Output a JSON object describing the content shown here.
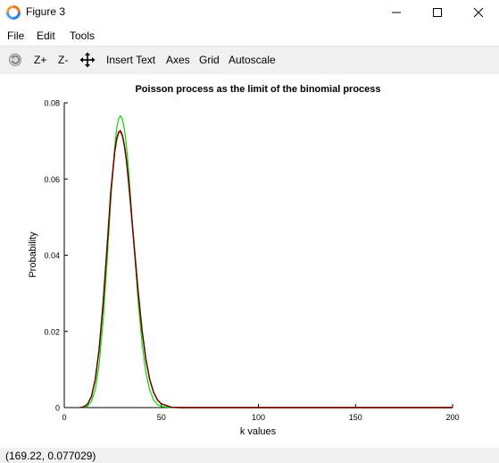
{
  "window": {
    "title": "Figure 3"
  },
  "menu": {
    "items": [
      "File",
      "Edit",
      "Tools"
    ]
  },
  "toolbar": {
    "zoom_in": "Z+",
    "zoom_out": "Z-",
    "insert_text": "Insert Text",
    "axes": "Axes",
    "grid": "Grid",
    "autoscale": "Autoscale"
  },
  "status": {
    "coordinates": "(169.22, 0.077029)"
  },
  "colors": {
    "binomial_series": "#00dd00",
    "poisson_series": "#cc2200",
    "third_series": "#660000"
  },
  "chart_data": {
    "type": "line",
    "title": "Poisson process as the limit of the binomial process",
    "xlabel": "k values",
    "ylabel": "Probability",
    "xlim": [
      0,
      200
    ],
    "ylim": [
      0,
      0.08
    ],
    "xticks": [
      0,
      50,
      100,
      150,
      200
    ],
    "yticks": [
      0,
      0.02,
      0.04,
      0.06,
      0.08
    ],
    "ytick_labels": [
      "0",
      "0.02",
      "0.04",
      "0.06",
      "0.08"
    ],
    "grid": false,
    "series": [
      {
        "color": "#00dd00",
        "x": [
          10,
          12,
          14,
          16,
          18,
          20,
          22,
          24,
          26,
          27,
          28,
          29,
          30,
          31,
          32,
          33,
          34,
          36,
          38,
          40,
          42,
          44,
          46,
          48,
          50,
          55,
          60,
          80,
          100,
          150,
          200
        ],
        "y": [
          0,
          0.0004,
          0.0016,
          0.0048,
          0.0115,
          0.0228,
          0.0381,
          0.0548,
          0.0686,
          0.0733,
          0.0758,
          0.0766,
          0.0756,
          0.073,
          0.0687,
          0.0631,
          0.0565,
          0.042,
          0.0282,
          0.0171,
          0.0093,
          0.0046,
          0.002,
          0.0008,
          0.0003,
          0,
          0,
          0,
          0,
          0,
          0
        ]
      },
      {
        "color": "#cc2200",
        "x": [
          8,
          10,
          12,
          14,
          16,
          18,
          20,
          22,
          24,
          26,
          27,
          28,
          29,
          30,
          31,
          32,
          33,
          34,
          36,
          38,
          40,
          42,
          44,
          46,
          48,
          50,
          55,
          60,
          80,
          100,
          150,
          200
        ],
        "y": [
          0,
          0.0002,
          0.0009,
          0.0029,
          0.0075,
          0.0155,
          0.0274,
          0.0418,
          0.0569,
          0.0673,
          0.0706,
          0.0724,
          0.0727,
          0.0714,
          0.0688,
          0.065,
          0.0601,
          0.0544,
          0.0425,
          0.0308,
          0.0206,
          0.0128,
          0.0074,
          0.004,
          0.002,
          0.001,
          0.0001,
          0,
          0,
          0,
          0,
          0
        ]
      },
      {
        "color": "#660000",
        "x": [
          8,
          10,
          12,
          14,
          16,
          18,
          20,
          22,
          24,
          26,
          27,
          28,
          29,
          30,
          31,
          32,
          33,
          34,
          36,
          38,
          40,
          42,
          44,
          46,
          48,
          50,
          55,
          60,
          80,
          100,
          150,
          200
        ],
        "y": [
          0,
          0.0002,
          0.0009,
          0.0029,
          0.0075,
          0.0155,
          0.0273,
          0.0417,
          0.0567,
          0.0671,
          0.0704,
          0.0722,
          0.0725,
          0.0712,
          0.0686,
          0.0648,
          0.0599,
          0.0542,
          0.0423,
          0.0307,
          0.0205,
          0.0128,
          0.0074,
          0.004,
          0.002,
          0.001,
          0.0001,
          0,
          0,
          0,
          0,
          0
        ]
      }
    ]
  }
}
